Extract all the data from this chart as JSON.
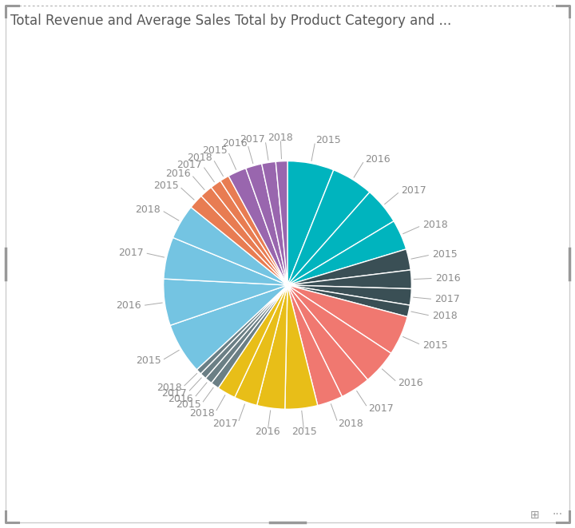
{
  "title": "Total Revenue and Average Sales Total by Product Category and ...",
  "title_color": "#595959",
  "title_fontsize": 12,
  "background_color": "#ffffff",
  "border_color": "#c8c8c8",
  "category_colors": [
    "#00B4BE",
    "#3A4F55",
    "#F07870",
    "#E8BE18",
    "#6B7F85",
    "#74C4E2",
    "#E87C52",
    "#9966AE"
  ],
  "years": [
    "2015",
    "2016",
    "2017",
    "2018"
  ],
  "values": [
    [
      10.0,
      9.0,
      8.0,
      6.5
    ],
    [
      4.5,
      4.0,
      3.5,
      2.5
    ],
    [
      8.5,
      7.5,
      6.5,
      5.5
    ],
    [
      7.0,
      6.0,
      5.0,
      4.0
    ],
    [
      1.8,
      1.6,
      1.4,
      1.2
    ],
    [
      11.0,
      10.0,
      9.0,
      7.5
    ],
    [
      3.2,
      2.8,
      2.4,
      2.0
    ],
    [
      4.0,
      3.5,
      3.0,
      2.5
    ]
  ],
  "label_color": "#8C8C8C",
  "label_fontsize": 9,
  "wedge_linewidth": 1.0,
  "wedge_linecolor": "#ffffff"
}
